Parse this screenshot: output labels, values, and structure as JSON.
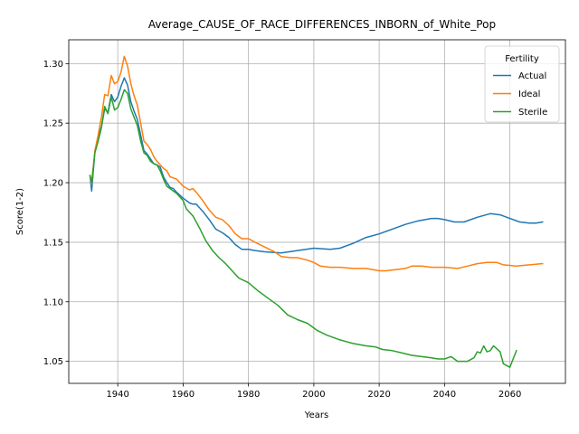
{
  "chart_data": {
    "type": "line",
    "title": "Average_CAUSE_OF_RACE_DIFFERENCES_INBORN_of_White_Pop",
    "xlabel": "Years",
    "ylabel": "Score(1-2)",
    "xlim": [
      1925,
      2077
    ],
    "ylim": [
      1.0315,
      1.32
    ],
    "xticks": [
      1940,
      1960,
      1980,
      2000,
      2020,
      2040,
      2060
    ],
    "yticks": [
      1.05,
      1.1,
      1.15,
      1.2,
      1.25,
      1.3
    ],
    "ytick_labels": [
      "1.05",
      "1.10",
      "1.15",
      "1.20",
      "1.25",
      "1.30"
    ],
    "grid": true,
    "legend": {
      "title": "Fertility",
      "position": "top-right"
    },
    "series": [
      {
        "name": "Actual",
        "color": "#1f77b4",
        "points": [
          [
            1931.5,
            1.206
          ],
          [
            1932,
            1.193
          ],
          [
            1933,
            1.226
          ],
          [
            1934,
            1.238
          ],
          [
            1935,
            1.247
          ],
          [
            1936,
            1.262
          ],
          [
            1937,
            1.259
          ],
          [
            1938,
            1.274
          ],
          [
            1939,
            1.268
          ],
          [
            1940,
            1.272
          ],
          [
            1941,
            1.281
          ],
          [
            1942,
            1.288
          ],
          [
            1943,
            1.282
          ],
          [
            1944,
            1.268
          ],
          [
            1945,
            1.26
          ],
          [
            1946,
            1.253
          ],
          [
            1947,
            1.24
          ],
          [
            1948,
            1.227
          ],
          [
            1949,
            1.224
          ],
          [
            1950,
            1.22
          ],
          [
            1951,
            1.216
          ],
          [
            1952,
            1.215
          ],
          [
            1953,
            1.213
          ],
          [
            1954,
            1.205
          ],
          [
            1955,
            1.2
          ],
          [
            1956,
            1.196
          ],
          [
            1957,
            1.195
          ],
          [
            1958,
            1.192
          ],
          [
            1960,
            1.187
          ],
          [
            1962,
            1.183
          ],
          [
            1963,
            1.182
          ],
          [
            1964,
            1.182
          ],
          [
            1966,
            1.176
          ],
          [
            1968,
            1.169
          ],
          [
            1970,
            1.161
          ],
          [
            1972,
            1.158
          ],
          [
            1974,
            1.154
          ],
          [
            1976,
            1.148
          ],
          [
            1978,
            1.144
          ],
          [
            1980,
            1.144
          ],
          [
            1982,
            1.143
          ],
          [
            1985,
            1.142
          ],
          [
            1990,
            1.141
          ],
          [
            1995,
            1.143
          ],
          [
            2000,
            1.145
          ],
          [
            2005,
            1.144
          ],
          [
            2008,
            1.145
          ],
          [
            2012,
            1.149
          ],
          [
            2016,
            1.154
          ],
          [
            2020,
            1.157
          ],
          [
            2024,
            1.161
          ],
          [
            2028,
            1.165
          ],
          [
            2032,
            1.168
          ],
          [
            2036,
            1.17
          ],
          [
            2038,
            1.17
          ],
          [
            2040,
            1.169
          ],
          [
            2043,
            1.167
          ],
          [
            2046,
            1.167
          ],
          [
            2050,
            1.171
          ],
          [
            2054,
            1.174
          ],
          [
            2057,
            1.173
          ],
          [
            2060,
            1.17
          ],
          [
            2063,
            1.167
          ],
          [
            2066,
            1.166
          ],
          [
            2068,
            1.166
          ],
          [
            2070,
            1.167
          ]
        ]
      },
      {
        "name": "Ideal",
        "color": "#ff7f0e",
        "points": [
          [
            1931.5,
            1.206
          ],
          [
            1932,
            1.199
          ],
          [
            1933,
            1.227
          ],
          [
            1934,
            1.24
          ],
          [
            1935,
            1.255
          ],
          [
            1936,
            1.274
          ],
          [
            1937,
            1.273
          ],
          [
            1938,
            1.29
          ],
          [
            1939,
            1.283
          ],
          [
            1940,
            1.285
          ],
          [
            1941,
            1.293
          ],
          [
            1942,
            1.306
          ],
          [
            1943,
            1.298
          ],
          [
            1944,
            1.283
          ],
          [
            1945,
            1.273
          ],
          [
            1946,
            1.265
          ],
          [
            1947,
            1.25
          ],
          [
            1948,
            1.235
          ],
          [
            1949,
            1.232
          ],
          [
            1950,
            1.228
          ],
          [
            1951,
            1.222
          ],
          [
            1952,
            1.218
          ],
          [
            1953,
            1.215
          ],
          [
            1954,
            1.212
          ],
          [
            1955,
            1.21
          ],
          [
            1956,
            1.205
          ],
          [
            1958,
            1.203
          ],
          [
            1960,
            1.197
          ],
          [
            1962,
            1.194
          ],
          [
            1963,
            1.195
          ],
          [
            1964,
            1.192
          ],
          [
            1966,
            1.185
          ],
          [
            1968,
            1.177
          ],
          [
            1970,
            1.171
          ],
          [
            1972,
            1.169
          ],
          [
            1974,
            1.164
          ],
          [
            1976,
            1.157
          ],
          [
            1978,
            1.153
          ],
          [
            1980,
            1.153
          ],
          [
            1982,
            1.15
          ],
          [
            1985,
            1.146
          ],
          [
            1988,
            1.142
          ],
          [
            1990,
            1.138
          ],
          [
            1993,
            1.137
          ],
          [
            1995,
            1.137
          ],
          [
            1998,
            1.135
          ],
          [
            2000,
            1.133
          ],
          [
            2002,
            1.13
          ],
          [
            2005,
            1.129
          ],
          [
            2008,
            1.129
          ],
          [
            2012,
            1.128
          ],
          [
            2016,
            1.128
          ],
          [
            2020,
            1.126
          ],
          [
            2022,
            1.126
          ],
          [
            2025,
            1.127
          ],
          [
            2028,
            1.128
          ],
          [
            2030,
            1.13
          ],
          [
            2033,
            1.13
          ],
          [
            2036,
            1.129
          ],
          [
            2040,
            1.129
          ],
          [
            2044,
            1.128
          ],
          [
            2047,
            1.13
          ],
          [
            2050,
            1.132
          ],
          [
            2053,
            1.133
          ],
          [
            2056,
            1.133
          ],
          [
            2058,
            1.131
          ],
          [
            2062,
            1.13
          ],
          [
            2066,
            1.131
          ],
          [
            2070,
            1.132
          ]
        ]
      },
      {
        "name": "Sterile",
        "color": "#2ca02c",
        "points": [
          [
            1931.5,
            1.206
          ],
          [
            1932,
            1.2
          ],
          [
            1933,
            1.225
          ],
          [
            1934,
            1.235
          ],
          [
            1935,
            1.246
          ],
          [
            1936,
            1.264
          ],
          [
            1937,
            1.258
          ],
          [
            1938,
            1.272
          ],
          [
            1939,
            1.261
          ],
          [
            1940,
            1.263
          ],
          [
            1941,
            1.27
          ],
          [
            1942,
            1.278
          ],
          [
            1943,
            1.275
          ],
          [
            1944,
            1.262
          ],
          [
            1945,
            1.255
          ],
          [
            1946,
            1.248
          ],
          [
            1947,
            1.235
          ],
          [
            1948,
            1.225
          ],
          [
            1949,
            1.223
          ],
          [
            1950,
            1.218
          ],
          [
            1951,
            1.216
          ],
          [
            1952,
            1.215
          ],
          [
            1953,
            1.21
          ],
          [
            1954,
            1.203
          ],
          [
            1955,
            1.197
          ],
          [
            1956,
            1.195
          ],
          [
            1958,
            1.191
          ],
          [
            1960,
            1.185
          ],
          [
            1961,
            1.178
          ],
          [
            1963,
            1.172
          ],
          [
            1965,
            1.162
          ],
          [
            1967,
            1.151
          ],
          [
            1969,
            1.143
          ],
          [
            1971,
            1.137
          ],
          [
            1973,
            1.132
          ],
          [
            1975,
            1.126
          ],
          [
            1977,
            1.12
          ],
          [
            1980,
            1.116
          ],
          [
            1983,
            1.109
          ],
          [
            1986,
            1.103
          ],
          [
            1989,
            1.097
          ],
          [
            1992,
            1.089
          ],
          [
            1995,
            1.085
          ],
          [
            1998,
            1.082
          ],
          [
            2001,
            1.076
          ],
          [
            2004,
            1.072
          ],
          [
            2008,
            1.068
          ],
          [
            2012,
            1.065
          ],
          [
            2016,
            1.063
          ],
          [
            2019,
            1.062
          ],
          [
            2021,
            1.06
          ],
          [
            2024,
            1.059
          ],
          [
            2027,
            1.057
          ],
          [
            2030,
            1.055
          ],
          [
            2033,
            1.054
          ],
          [
            2036,
            1.053
          ],
          [
            2038,
            1.052
          ],
          [
            2040,
            1.052
          ],
          [
            2042,
            1.054
          ],
          [
            2044,
            1.05
          ],
          [
            2047,
            1.05
          ],
          [
            2049,
            1.053
          ],
          [
            2050,
            1.058
          ],
          [
            2051,
            1.057
          ],
          [
            2052,
            1.063
          ],
          [
            2053,
            1.058
          ],
          [
            2054,
            1.059
          ],
          [
            2055,
            1.063
          ],
          [
            2057,
            1.058
          ],
          [
            2058,
            1.048
          ],
          [
            2060,
            1.045
          ],
          [
            2061,
            1.052
          ],
          [
            2062,
            1.059
          ]
        ]
      }
    ]
  }
}
